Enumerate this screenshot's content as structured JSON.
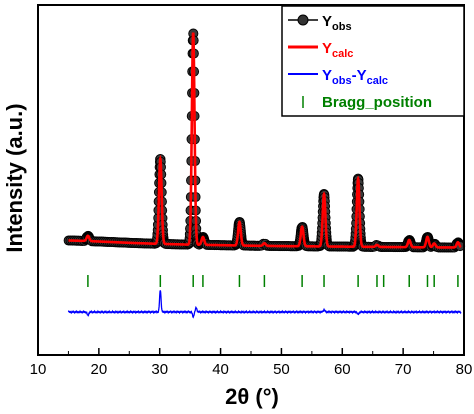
{
  "chart_data": {
    "type": "line",
    "title": "",
    "xlabel": "2θ (°)",
    "ylabel": "Intensity (a.u.)",
    "xlim": [
      10,
      80
    ],
    "x_ticks": [
      10,
      20,
      30,
      40,
      50,
      60,
      70,
      80
    ],
    "y_ticks_shown": false,
    "grid": false,
    "legend_position": "top-right",
    "colors": {
      "obs": "#000000",
      "calc": "#ff0000",
      "diff": "#0000ff",
      "bragg": "#008000"
    },
    "legend": [
      {
        "key": "obs",
        "main": "Y",
        "sub": "obs",
        "color": "#000000"
      },
      {
        "key": "calc",
        "main": "Y",
        "sub": "calc",
        "color": "#ff0000"
      },
      {
        "key": "diff",
        "main": "Y",
        "sub": "obs",
        "mid": "-Y",
        "sub2": "calc",
        "color": "#0000ff"
      },
      {
        "key": "bragg",
        "text": "Bragg_position",
        "color": "#008000"
      }
    ],
    "background": {
      "x": [
        15,
        18,
        22,
        26,
        30,
        35,
        40,
        45,
        50,
        55,
        60,
        65,
        70,
        75,
        79.5
      ],
      "y": [
        100,
        96,
        88,
        80,
        74,
        68,
        64,
        60,
        57,
        55,
        53,
        51,
        49,
        47,
        46
      ]
    },
    "peak_width": 0.22,
    "peaks": [
      {
        "x": 18.2,
        "h": 40
      },
      {
        "x": 30.1,
        "h": 650
      },
      {
        "x": 35.5,
        "h": 1620
      },
      {
        "x": 37.1,
        "h": 60
      },
      {
        "x": 43.1,
        "h": 180
      },
      {
        "x": 47.2,
        "h": 20
      },
      {
        "x": 53.4,
        "h": 150
      },
      {
        "x": 57.0,
        "h": 400
      },
      {
        "x": 62.6,
        "h": 520
      },
      {
        "x": 65.7,
        "h": 15
      },
      {
        "x": 71.0,
        "h": 55
      },
      {
        "x": 74.0,
        "h": 80
      },
      {
        "x": 75.1,
        "h": 30
      },
      {
        "x": 79.0,
        "h": 40
      }
    ],
    "bragg_positions": [
      18.2,
      30.1,
      35.5,
      37.1,
      43.1,
      47.2,
      53.4,
      57.0,
      62.6,
      65.7,
      66.8,
      71.0,
      74.0,
      75.1,
      79.0
    ],
    "diff_spikes": [
      {
        "x": 18.2,
        "v": -30
      },
      {
        "x": 30.1,
        "v": 180
      },
      {
        "x": 35.5,
        "v": -40
      },
      {
        "x": 36.0,
        "v": 35
      },
      {
        "x": 57.0,
        "v": 20
      },
      {
        "x": 62.6,
        "v": -20
      }
    ]
  }
}
